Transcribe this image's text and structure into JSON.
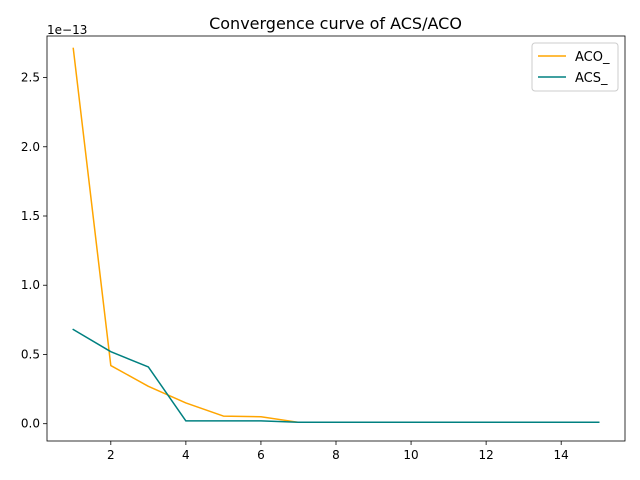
{
  "chart_data": {
    "type": "line",
    "title": "Convergence curve of ACS/ACO",
    "xlabel": "",
    "ylabel": "",
    "y_offset_label": "1e−13",
    "xlim": [
      0.3,
      15.7
    ],
    "ylim": [
      -0.125,
      2.8
    ],
    "x_ticks": [
      2,
      4,
      6,
      8,
      10,
      12,
      14
    ],
    "x_tick_labels": [
      "2",
      "4",
      "6",
      "8",
      "10",
      "12",
      "14"
    ],
    "y_ticks": [
      0.0,
      0.5,
      1.0,
      1.5,
      2.0,
      2.5
    ],
    "y_tick_labels": [
      "0.0",
      "0.5",
      "1.0",
      "1.5",
      "2.0",
      "2.5"
    ],
    "grid": false,
    "legend_position": "top-right",
    "x": [
      1,
      2,
      3,
      4,
      5,
      6,
      7,
      8,
      9,
      10,
      11,
      12,
      13,
      14,
      15
    ],
    "series": [
      {
        "name": "ACO_",
        "color": "#ffa500",
        "values": [
          2.71,
          0.42,
          0.27,
          0.15,
          0.055,
          0.05,
          0.01,
          0.01,
          0.01,
          0.01,
          0.01,
          0.01,
          0.01,
          0.01,
          0.01
        ]
      },
      {
        "name": "ACS_",
        "color": "#008080",
        "values": [
          0.68,
          0.52,
          0.41,
          0.02,
          0.02,
          0.02,
          0.01,
          0.01,
          0.01,
          0.01,
          0.01,
          0.01,
          0.01,
          0.01,
          0.01
        ]
      }
    ]
  }
}
